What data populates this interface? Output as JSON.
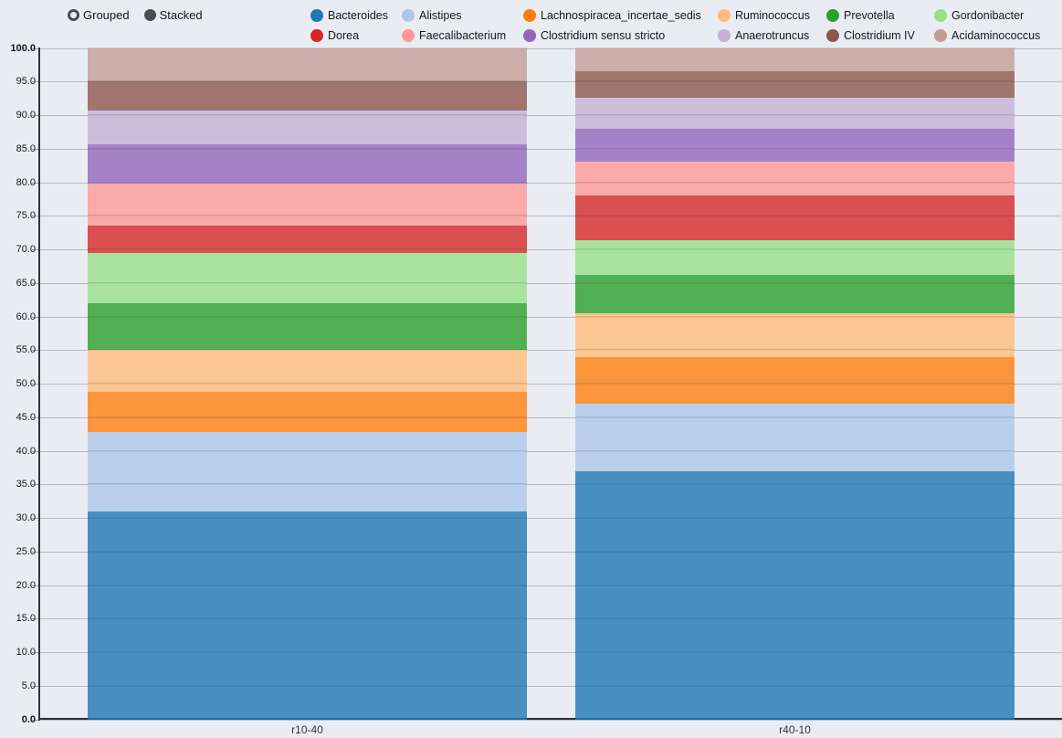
{
  "controls": {
    "grouped_label": "Grouped",
    "stacked_label": "Stacked",
    "selected": "Stacked"
  },
  "chart_data": {
    "type": "bar",
    "stacked": true,
    "title": "",
    "xlabel": "",
    "ylabel": "",
    "categories": [
      "r10-40",
      "r40-10"
    ],
    "series": [
      {
        "name": "Bacteroides",
        "color": "#1f77b4",
        "values": [
          31.0,
          37.0
        ]
      },
      {
        "name": "Alistipes",
        "color": "#aec7e8",
        "values": [
          11.8,
          10.0
        ]
      },
      {
        "name": "Lachnospiracea_incertae_sedis",
        "color": "#ff7f0e",
        "values": [
          6.0,
          7.0
        ]
      },
      {
        "name": "Ruminococcus",
        "color": "#ffbb78",
        "values": [
          6.3,
          6.5
        ]
      },
      {
        "name": "Prevotella",
        "color": "#2ca02c",
        "values": [
          6.9,
          5.7
        ]
      },
      {
        "name": "Gordonibacter",
        "color": "#98df8a",
        "values": [
          7.4,
          5.2
        ]
      },
      {
        "name": "Dorea",
        "color": "#d62728",
        "values": [
          4.2,
          6.7
        ]
      },
      {
        "name": "Faecalibacterium",
        "color": "#ff9896",
        "values": [
          6.2,
          5.0
        ]
      },
      {
        "name": "Clostridium sensu stricto",
        "color": "#9467bd",
        "values": [
          5.9,
          4.9
        ]
      },
      {
        "name": "Anaerotruncus",
        "color": "#c5b0d5",
        "values": [
          5.0,
          4.6
        ]
      },
      {
        "name": "Clostridium IV",
        "color": "#8c564b",
        "values": [
          4.4,
          3.9
        ]
      },
      {
        "name": "Acidaminococcus",
        "color": "#c49c94",
        "values": [
          4.9,
          3.5
        ]
      }
    ],
    "ylim": [
      0,
      100
    ],
    "ytick_step": 5,
    "ytick_labels": [
      "0.0",
      "5.0",
      "10.0",
      "15.0",
      "20.0",
      "25.0",
      "30.0",
      "35.0",
      "40.0",
      "45.0",
      "50.0",
      "55.0",
      "60.0",
      "65.0",
      "70.0",
      "75.0",
      "80.0",
      "85.0",
      "90.0",
      "95.0",
      "100.0"
    ],
    "grid": true,
    "legend_position": "top",
    "bar_opacity": 0.8
  },
  "colors": {
    "background": "#e9edf3",
    "gridline": "#b5bac4",
    "axis": "#2d3139",
    "radio": "#4c4c54"
  }
}
